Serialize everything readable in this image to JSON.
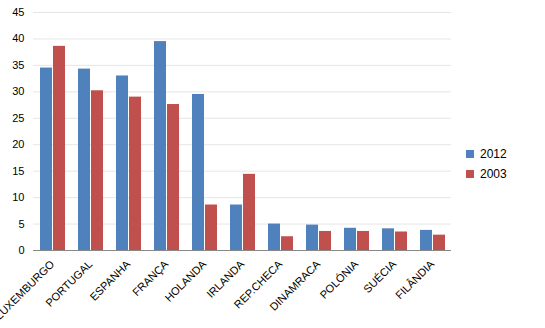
{
  "chart_data": {
    "type": "bar",
    "categories": [
      "LUXEMBURGO",
      "PORTUGAL",
      "ESPANHA",
      "FRANÇA",
      "HOLANDA",
      "IRLANDA",
      "REP.CHECA",
      "DINAMRACA",
      "POLÓNIA",
      "SUÉCIA",
      "FILÂNDIA"
    ],
    "series": [
      {
        "name": "2012",
        "color": "#4f81bd",
        "values": [
          34.5,
          34.3,
          33.0,
          39.5,
          29.5,
          8.6,
          5.0,
          4.8,
          4.2,
          4.1,
          3.8
        ]
      },
      {
        "name": "2003",
        "color": "#c0504d",
        "values": [
          38.6,
          30.2,
          29.0,
          27.6,
          8.6,
          14.4,
          2.6,
          3.6,
          3.6,
          3.5,
          2.9
        ]
      }
    ],
    "ylim": [
      0,
      45
    ],
    "yticks": [
      0,
      5,
      10,
      15,
      20,
      25,
      30,
      35,
      40,
      45
    ],
    "grid": true,
    "legend": "right"
  }
}
